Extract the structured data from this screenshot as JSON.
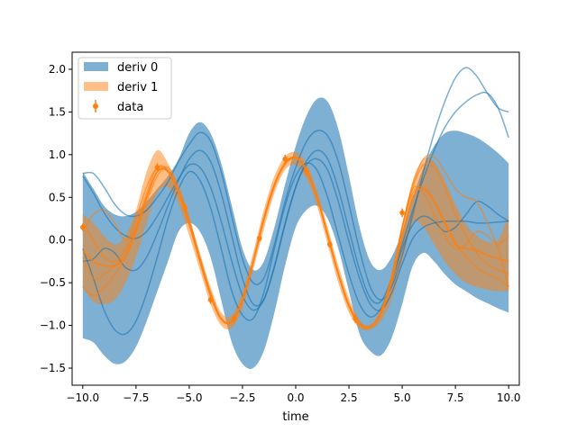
{
  "chart_data": {
    "type": "line",
    "title": "",
    "xlabel": "time",
    "ylabel": "",
    "xlim": [
      -10.5,
      10.5
    ],
    "ylim": [
      -1.7,
      2.2
    ],
    "xticks": [
      -10.0,
      -7.5,
      -5.0,
      -2.5,
      0.0,
      2.5,
      5.0,
      7.5,
      10.0
    ],
    "xtick_labels": [
      "−10.0",
      "−7.5",
      "−5.0",
      "−2.5",
      "0.0",
      "2.5",
      "5.0",
      "7.5",
      "10.0"
    ],
    "yticks": [
      -1.5,
      -1.0,
      -0.5,
      0.0,
      0.5,
      1.0,
      1.5,
      2.0
    ],
    "ytick_labels": [
      "−1.5",
      "−1.0",
      "−0.5",
      "0.0",
      "0.5",
      "1.0",
      "1.5",
      "2.0"
    ],
    "grid": false,
    "legend": {
      "placement": "top-left",
      "entries": [
        {
          "label": "deriv 0",
          "kind": "band",
          "color": "#1f77b4"
        },
        {
          "label": "deriv 1",
          "kind": "band",
          "color": "#ff7f0e"
        },
        {
          "label": "data",
          "kind": "errorbar",
          "color": "#ff7f0e"
        }
      ]
    },
    "bands": [
      {
        "name": "deriv 0",
        "color": "#1f77b4",
        "x": [
          -10,
          -9.5,
          -9,
          -8.5,
          -8,
          -7.5,
          -7,
          -6.5,
          -6,
          -5.5,
          -5,
          -4.5,
          -4,
          -3.5,
          -3,
          -2.5,
          -2,
          -1.5,
          -1,
          -0.5,
          0,
          0.5,
          1,
          1.5,
          2,
          2.5,
          3,
          3.5,
          4,
          4.5,
          5,
          5.5,
          6,
          6.5,
          7,
          7.5,
          8,
          8.5,
          9,
          9.5,
          10
        ],
        "upper": [
          0.8,
          0.6,
          0.4,
          0.3,
          0.28,
          0.33,
          0.45,
          0.6,
          0.75,
          0.95,
          1.25,
          1.38,
          1.25,
          0.9,
          0.4,
          -0.1,
          -0.35,
          -0.25,
          0.15,
          0.65,
          1.1,
          1.45,
          1.65,
          1.62,
          1.3,
          0.75,
          0.15,
          -0.25,
          -0.35,
          -0.2,
          0.1,
          0.5,
          0.85,
          1.1,
          1.25,
          1.28,
          1.25,
          1.2,
          1.12,
          1.02,
          0.9
        ],
        "lower": [
          -1.15,
          -1.2,
          -1.35,
          -1.45,
          -1.42,
          -1.25,
          -0.95,
          -0.6,
          -0.25,
          0.1,
          0.2,
          0.1,
          -0.2,
          -0.7,
          -1.2,
          -1.45,
          -1.5,
          -1.3,
          -0.85,
          -0.3,
          0.15,
          0.35,
          0.4,
          0.25,
          -0.1,
          -0.6,
          -1.1,
          -1.3,
          -1.35,
          -1.15,
          -0.75,
          -0.3,
          -0.15,
          -0.25,
          -0.4,
          -0.52,
          -0.6,
          -0.68,
          -0.74,
          -0.8,
          -0.85
        ]
      },
      {
        "name": "deriv 1",
        "color": "#ff7f0e",
        "x": [
          -10,
          -9.5,
          -9,
          -8.5,
          -8,
          -7.5,
          -7,
          -6.5,
          -6,
          -5.5,
          -5,
          -4.5,
          -4,
          -3.5,
          -3,
          -2.5,
          -2,
          -1.5,
          -1,
          -0.5,
          0,
          0.5,
          1,
          1.5,
          2,
          2.5,
          3,
          3.5,
          4,
          4.5,
          5,
          5.5,
          6,
          6.5,
          7,
          7.5,
          8,
          8.5,
          9,
          9.5,
          10
        ],
        "upper": [
          0.3,
          0.2,
          0.05,
          -0.05,
          0.05,
          0.35,
          0.8,
          1.05,
          0.9,
          0.6,
          0.25,
          -0.15,
          -0.55,
          -0.85,
          -0.88,
          -0.6,
          -0.15,
          0.35,
          0.75,
          0.98,
          1.03,
          0.9,
          0.58,
          0.15,
          -0.3,
          -0.68,
          -0.94,
          -1.0,
          -0.82,
          -0.4,
          0.18,
          0.7,
          0.95,
          0.92,
          0.7,
          0.42,
          0.18,
          0.05,
          -0.02,
          0.0,
          0.3
        ],
        "lower": [
          -0.55,
          -0.72,
          -0.75,
          -0.7,
          -0.5,
          -0.2,
          0.2,
          0.55,
          0.62,
          0.42,
          0.05,
          -0.35,
          -0.75,
          -1.0,
          -1.03,
          -0.8,
          -0.35,
          0.12,
          0.55,
          0.82,
          0.88,
          0.72,
          0.4,
          -0.05,
          -0.5,
          -0.85,
          -1.03,
          -1.05,
          -0.95,
          -0.7,
          -0.25,
          0.2,
          0.15,
          -0.05,
          -0.25,
          -0.4,
          -0.5,
          -0.55,
          -0.58,
          -0.6,
          -0.6
        ]
      }
    ],
    "series": [
      {
        "color": "#1f77b4",
        "alpha": 0.6,
        "x": [
          -10,
          -9.5,
          -9,
          -8.5,
          -8,
          -7.5,
          -7,
          -6.5,
          -6,
          -5.5,
          -5,
          -4.5,
          -4,
          -3.5,
          -3,
          -2.5,
          -2,
          -1.5,
          -1,
          -0.5,
          0,
          0.5,
          1,
          1.5,
          2,
          2.5,
          3,
          3.5,
          4,
          4.5,
          5,
          5.5,
          6,
          6.5,
          7,
          7.5,
          8,
          8.5,
          9,
          9.5,
          10
        ],
        "y": [
          0.78,
          0.78,
          0.62,
          0.42,
          0.3,
          0.28,
          0.35,
          0.5,
          0.68,
          0.92,
          1.12,
          1.26,
          1.16,
          0.8,
          0.28,
          -0.22,
          -0.5,
          -0.45,
          -0.05,
          0.45,
          0.85,
          1.15,
          1.28,
          1.22,
          0.92,
          0.42,
          -0.12,
          -0.55,
          -0.7,
          -0.55,
          -0.18,
          0.3,
          0.8,
          1.25,
          1.62,
          1.9,
          2.02,
          1.92,
          1.72,
          1.55,
          1.5
        ]
      },
      {
        "color": "#1f77b4",
        "alpha": 0.6,
        "x": [
          -10,
          -9.5,
          -9,
          -8.5,
          -8,
          -7.5,
          -7,
          -6.5,
          -6,
          -5.5,
          -5,
          -4.5,
          -4,
          -3.5,
          -3,
          -2.5,
          -2,
          -1.5,
          -1,
          -0.5,
          0,
          0.5,
          1,
          1.5,
          2,
          2.5,
          3,
          3.5,
          4,
          4.5,
          5,
          5.5,
          6,
          6.5,
          7,
          7.5,
          8,
          8.5,
          9,
          9.5,
          10
        ],
        "y": [
          -0.1,
          -0.45,
          -0.82,
          -1.05,
          -1.1,
          -0.95,
          -0.62,
          -0.2,
          0.25,
          0.6,
          0.8,
          0.7,
          0.38,
          -0.1,
          -0.6,
          -0.88,
          -0.92,
          -0.62,
          -0.1,
          0.4,
          0.75,
          0.9,
          0.82,
          0.5,
          0.05,
          -0.4,
          -0.75,
          -0.9,
          -0.8,
          -0.5,
          -0.1,
          0.18,
          0.28,
          0.22,
          0.1,
          0.15,
          0.3,
          0.45,
          0.4,
          0.3,
          0.22
        ]
      },
      {
        "color": "#1f77b4",
        "alpha": 0.6,
        "x": [
          -10,
          -9.5,
          -9,
          -8.5,
          -8,
          -7.5,
          -7,
          -6.5,
          -6,
          -5.5,
          -5,
          -4.5,
          -4,
          -3.5,
          -3,
          -2.5,
          -2,
          -1.5,
          -1,
          -0.5,
          0,
          0.5,
          1,
          1.5,
          2,
          2.5,
          3,
          3.5,
          4,
          4.5,
          5,
          5.5,
          6,
          6.5,
          7,
          7.5,
          8,
          8.5,
          9,
          9.5,
          10
        ],
        "y": [
          -0.25,
          -0.22,
          -0.1,
          -0.15,
          -0.32,
          -0.35,
          -0.2,
          0.08,
          0.4,
          0.7,
          0.95,
          1.05,
          0.92,
          0.55,
          0.05,
          -0.45,
          -0.75,
          -0.7,
          -0.32,
          0.18,
          0.62,
          0.92,
          1.05,
          0.95,
          0.6,
          0.12,
          -0.35,
          -0.68,
          -0.72,
          -0.45,
          -0.05,
          0.35,
          0.72,
          1.05,
          1.32,
          1.5,
          1.62,
          1.7,
          1.72,
          1.55,
          1.2
        ]
      },
      {
        "color": "#1f77b4",
        "alpha": 0.6,
        "x": [
          -10,
          -9.5,
          -9,
          -8.5,
          -8,
          -7.5,
          -7,
          -6.5,
          -6,
          -5.5,
          -5,
          -4.5,
          -4,
          -3.5,
          -3,
          -2.5,
          -2,
          -1.5,
          -1,
          -0.5,
          0,
          0.5,
          1,
          1.5,
          2,
          2.5,
          3,
          3.5,
          4,
          4.5,
          5,
          5.5,
          6,
          6.5,
          7,
          7.5,
          8,
          8.5,
          9,
          9.5,
          10
        ],
        "y": [
          0.75,
          0.55,
          0.32,
          0.15,
          0.05,
          0.02,
          0.1,
          0.28,
          0.5,
          0.72,
          0.88,
          0.85,
          0.62,
          0.22,
          -0.25,
          -0.65,
          -0.82,
          -0.7,
          -0.3,
          0.2,
          0.62,
          0.88,
          0.95,
          0.82,
          0.45,
          -0.02,
          -0.45,
          -0.75,
          -0.82,
          -0.62,
          -0.28,
          0.02,
          0.15,
          0.2,
          0.22,
          0.22,
          0.22,
          0.2,
          0.2,
          0.21,
          0.22
        ]
      },
      {
        "color": "#ff7f0e",
        "alpha": 0.6,
        "x": [
          -10,
          -9.5,
          -9,
          -8.5,
          -8,
          -7.5,
          -7,
          -6.5,
          -6,
          -5.5,
          -5,
          -4.5,
          -4,
          -3.5,
          -3,
          -2.5,
          -2,
          -1.5,
          -1,
          -0.5,
          0,
          0.5,
          1,
          1.5,
          2,
          2.5,
          3,
          3.5,
          4,
          4.5,
          5,
          5.5,
          6,
          6.5,
          7,
          7.5,
          8,
          8.5,
          9,
          9.5,
          10
        ],
        "y": [
          0.2,
          0.0,
          -0.2,
          -0.25,
          -0.1,
          0.25,
          0.62,
          0.85,
          0.8,
          0.55,
          0.2,
          -0.25,
          -0.65,
          -0.92,
          -0.95,
          -0.7,
          -0.25,
          0.25,
          0.65,
          0.9,
          0.97,
          0.82,
          0.5,
          0.05,
          -0.4,
          -0.77,
          -0.99,
          -1.02,
          -0.85,
          -0.45,
          0.15,
          0.62,
          0.88,
          0.85,
          0.62,
          0.3,
          0.05,
          -0.15,
          -0.28,
          -0.35,
          -0.4
        ]
      },
      {
        "color": "#ff7f0e",
        "alpha": 0.6,
        "x": [
          -10,
          -9.5,
          -9,
          -8.5,
          -8,
          -7.5,
          -7,
          -6.5,
          -6,
          -5.5,
          -5,
          -4.5,
          -4,
          -3.5,
          -3,
          -2.5,
          -2,
          -1.5,
          -1,
          -0.5,
          0,
          0.5,
          1,
          1.5,
          2,
          2.5,
          3,
          3.5,
          4,
          4.5,
          5,
          5.5,
          6,
          6.5,
          7,
          7.5,
          8,
          8.5,
          9,
          9.5,
          10
        ],
        "y": [
          -0.55,
          -0.65,
          -0.55,
          -0.4,
          -0.2,
          0.1,
          0.45,
          0.75,
          0.85,
          0.62,
          0.25,
          -0.2,
          -0.62,
          -0.92,
          -0.96,
          -0.72,
          -0.28,
          0.22,
          0.62,
          0.88,
          0.96,
          0.83,
          0.52,
          0.08,
          -0.38,
          -0.75,
          -0.97,
          -1.0,
          -0.82,
          -0.42,
          0.15,
          0.55,
          0.62,
          0.45,
          0.22,
          -0.02,
          -0.2,
          -0.32,
          -0.4,
          -0.45,
          -0.55
        ]
      },
      {
        "color": "#ff7f0e",
        "alpha": 0.6,
        "x": [
          -10,
          -9.5,
          -9,
          -8.5,
          -8,
          -7.5,
          -7,
          -6.5,
          -6,
          -5.5,
          -5,
          -4.5,
          -4,
          -3.5,
          -3,
          -2.5,
          -2,
          -1.5,
          -1,
          -0.5,
          0,
          0.5,
          1,
          1.5,
          2,
          2.5,
          3,
          3.5,
          4,
          4.5,
          5,
          5.5,
          6,
          6.5,
          7,
          7.5,
          8,
          8.5,
          9,
          9.5,
          10
        ],
        "y": [
          0.1,
          0.3,
          0.35,
          0.2,
          0.0,
          0.15,
          0.5,
          0.8,
          0.82,
          0.58,
          0.22,
          -0.22,
          -0.62,
          -0.92,
          -0.95,
          -0.7,
          -0.25,
          0.25,
          0.65,
          0.9,
          0.97,
          0.82,
          0.5,
          0.05,
          -0.4,
          -0.78,
          -0.99,
          -1.02,
          -0.85,
          -0.45,
          0.15,
          0.6,
          0.55,
          0.3,
          0.05,
          -0.1,
          -0.05,
          0.1,
          0.05,
          -0.05,
          0.05
        ]
      },
      {
        "color": "#ff7f0e",
        "alpha": 0.6,
        "x": [
          -10,
          -9.5,
          -9,
          -8.5,
          -8,
          -7.5,
          -7,
          -6.5,
          -6,
          -5.5,
          -5,
          -4.5,
          -4,
          -3.5,
          -3,
          -2.5,
          -2,
          -1.5,
          -1,
          -0.5,
          0,
          0.5,
          1,
          1.5,
          2,
          2.5,
          3,
          3.5,
          4,
          4.5,
          5,
          5.5,
          6,
          6.5,
          7,
          7.5,
          8,
          8.5,
          9,
          9.5,
          10
        ],
        "y": [
          -0.2,
          -0.45,
          -0.4,
          -0.3,
          -0.15,
          0.15,
          0.55,
          0.85,
          0.82,
          0.58,
          0.22,
          -0.22,
          -0.62,
          -0.92,
          -0.95,
          -0.7,
          -0.25,
          0.25,
          0.65,
          0.9,
          0.97,
          0.82,
          0.5,
          0.05,
          -0.4,
          -0.78,
          -0.99,
          -1.02,
          -0.85,
          -0.45,
          0.15,
          0.65,
          0.95,
          0.98,
          0.8,
          0.6,
          0.5,
          0.45,
          0.2,
          -0.1,
          -0.55
        ]
      },
      {
        "color": "#ff7f0e",
        "alpha": 0.9,
        "x": [
          -10,
          -9.5,
          -9,
          -8.5,
          -8,
          -7.5,
          -7,
          -6.5,
          -6,
          -5.5,
          -5,
          -4.5,
          -4,
          -3.5,
          -3,
          -2.5,
          -2,
          -1.5,
          -1,
          -0.5,
          0,
          0.5,
          1,
          1.5,
          2,
          2.5,
          3,
          3.5,
          4,
          4.5,
          5,
          5.5,
          6,
          6.5,
          7,
          7.5,
          8,
          8.5,
          9,
          9.5,
          10
        ],
        "y": [
          -0.12,
          -0.25,
          -0.3,
          -0.3,
          -0.2,
          0.1,
          0.5,
          0.8,
          0.8,
          0.55,
          0.18,
          -0.25,
          -0.65,
          -0.93,
          -0.96,
          -0.7,
          -0.25,
          0.25,
          0.65,
          0.9,
          0.96,
          0.82,
          0.5,
          0.05,
          -0.4,
          -0.77,
          -0.99,
          -1.02,
          -0.86,
          -0.5,
          0.05,
          0.5,
          0.6,
          0.45,
          0.2,
          -0.05,
          -0.1,
          -0.12,
          -0.18,
          -0.22,
          -0.25
        ]
      }
    ],
    "data_points": [
      {
        "x": -10.0,
        "y": 0.15,
        "err": 0.04
      },
      {
        "x": -6.5,
        "y": 0.85,
        "err": 0.05
      },
      {
        "x": -5.2,
        "y": 0.38,
        "err": 0.05
      },
      {
        "x": -4.0,
        "y": -0.7,
        "err": 0.05
      },
      {
        "x": -2.9,
        "y": -0.92,
        "err": 0.05
      },
      {
        "x": -1.7,
        "y": 0.02,
        "err": 0.04
      },
      {
        "x": -0.5,
        "y": 0.95,
        "err": 0.05
      },
      {
        "x": 0.5,
        "y": 0.8,
        "err": 0.05
      },
      {
        "x": 1.6,
        "y": -0.05,
        "err": 0.04
      },
      {
        "x": 2.8,
        "y": -0.92,
        "err": 0.05
      },
      {
        "x": 5.0,
        "y": 0.32,
        "err": 0.05
      }
    ]
  }
}
